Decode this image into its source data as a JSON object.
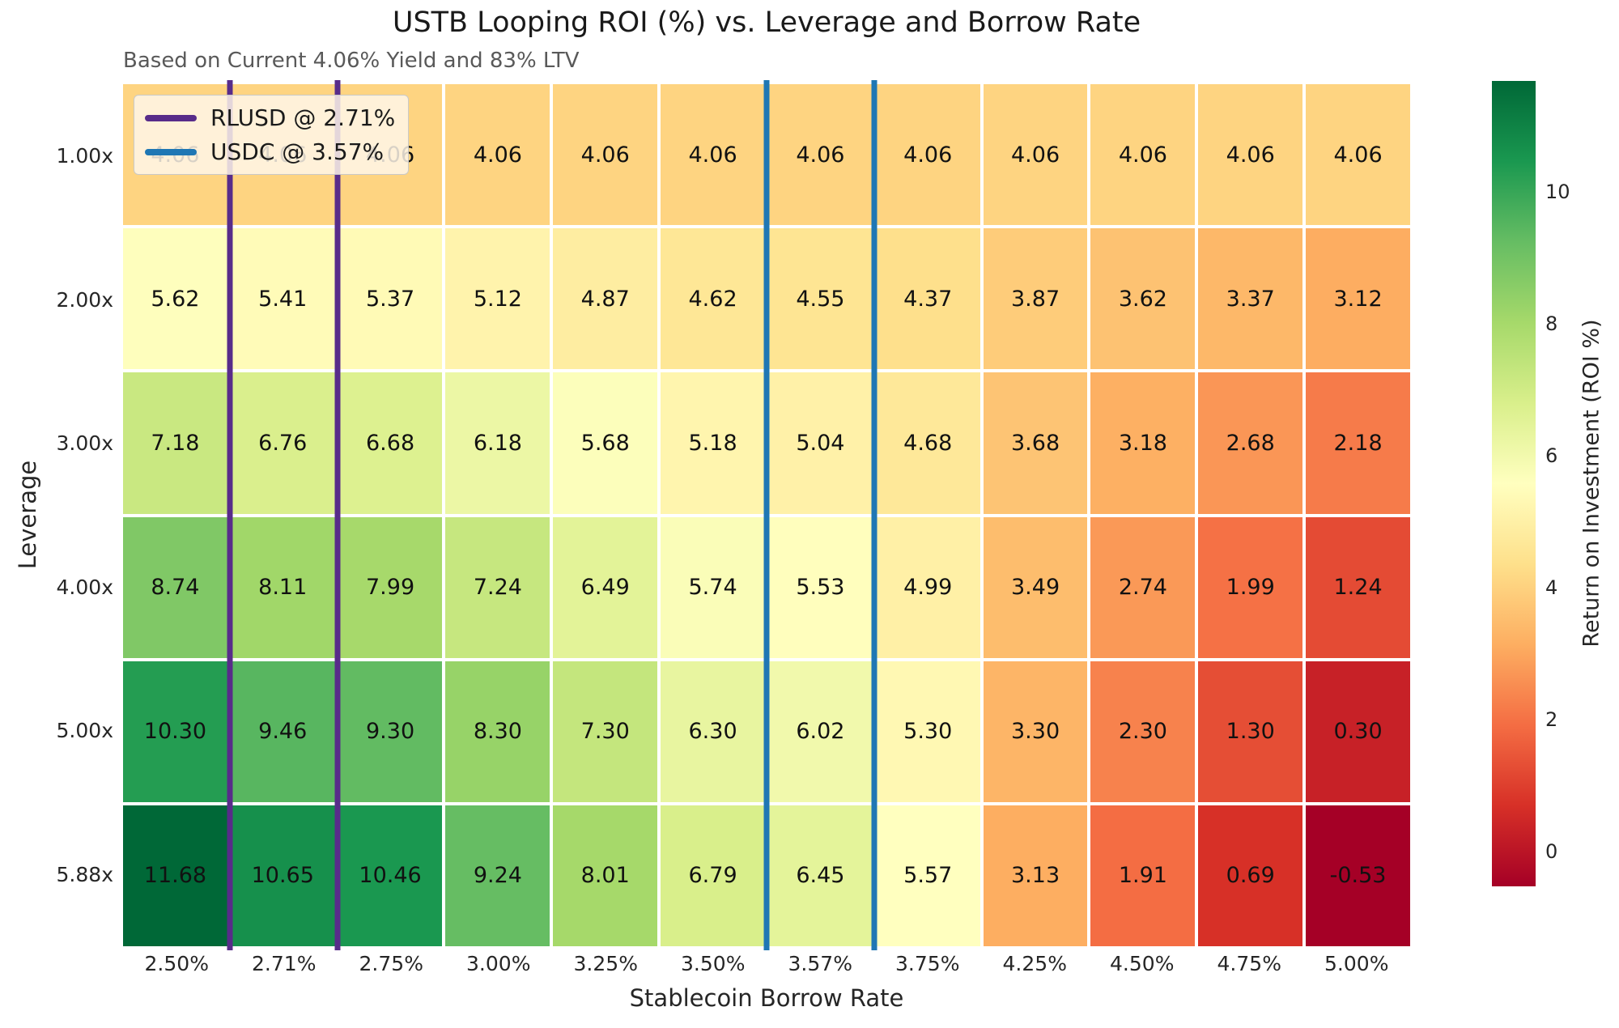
{
  "title": "USTB Looping ROI (%) vs. Leverage and Borrow Rate",
  "subtitle": "Based on Current 4.06% Yield and 83% LTV",
  "x_axis": {
    "label": "Stablecoin Borrow Rate"
  },
  "y_axis": {
    "label": "Leverage"
  },
  "legend": {
    "items": [
      {
        "label": "RLUSD @ 2.71%",
        "color": "#582c8a"
      },
      {
        "label": "USDC @ 3.57%",
        "color": "#1f77b4"
      }
    ]
  },
  "colorbar": {
    "label": "Return on Investment (ROI %)",
    "ticks": [
      0,
      2,
      4,
      6,
      8,
      10
    ]
  },
  "chart_data": {
    "type": "heatmap",
    "colormap": "RdYlGn",
    "vmin": -0.53,
    "vmax": 11.68,
    "x_categories": [
      "2.50%",
      "2.71%",
      "2.75%",
      "3.00%",
      "3.25%",
      "3.50%",
      "3.57%",
      "3.75%",
      "4.25%",
      "4.50%",
      "4.75%",
      "5.00%"
    ],
    "y_categories": [
      "1.00x",
      "2.00x",
      "3.00x",
      "4.00x",
      "5.00x",
      "5.88x"
    ],
    "values": [
      [
        4.06,
        4.06,
        4.06,
        4.06,
        4.06,
        4.06,
        4.06,
        4.06,
        4.06,
        4.06,
        4.06,
        4.06
      ],
      [
        5.62,
        5.41,
        5.37,
        5.12,
        4.87,
        4.62,
        4.55,
        4.37,
        3.87,
        3.62,
        3.37,
        3.12
      ],
      [
        7.18,
        6.76,
        6.68,
        6.18,
        5.68,
        5.18,
        5.04,
        4.68,
        3.68,
        3.18,
        2.68,
        2.18
      ],
      [
        8.74,
        8.11,
        7.99,
        7.24,
        6.49,
        5.74,
        5.53,
        4.99,
        3.49,
        2.74,
        1.99,
        1.24
      ],
      [
        10.3,
        9.46,
        9.3,
        8.3,
        7.3,
        6.3,
        6.02,
        5.3,
        3.3,
        2.3,
        1.3,
        0.3
      ],
      [
        11.68,
        10.65,
        10.46,
        9.24,
        8.01,
        6.79,
        6.45,
        5.57,
        3.13,
        1.91,
        0.69,
        -0.53
      ]
    ],
    "vlines": [
      {
        "label": "RLUSD @ 2.71%",
        "color": "#582c8a",
        "boundaries": [
          1,
          2
        ]
      },
      {
        "label": "USDC @ 3.57%",
        "color": "#1f77b4",
        "boundaries": [
          6,
          7
        ]
      }
    ]
  }
}
